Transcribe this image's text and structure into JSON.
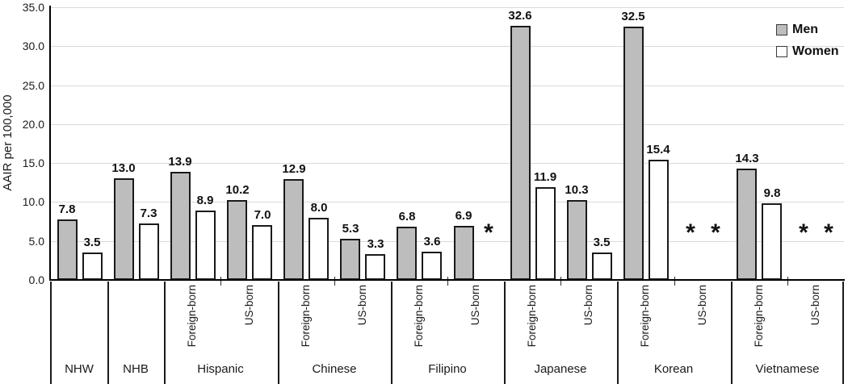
{
  "chart_data": {
    "type": "bar",
    "title": "",
    "ylabel": "AAIR per 100,000",
    "ylim": [
      0,
      35
    ],
    "ytick_step": 5,
    "yticks": [
      "0.0",
      "5.0",
      "10.0",
      "15.0",
      "20.0",
      "25.0",
      "30.0",
      "35.0"
    ],
    "grid": true,
    "legend_position": "top-right",
    "missing_marker": "*",
    "series": [
      {
        "name": "Men",
        "fill": "#bdbdbd"
      },
      {
        "name": "Women",
        "fill": "#ffffff"
      }
    ],
    "groups": [
      {
        "label": "NHW",
        "slots": [
          {
            "sub": "",
            "men": 7.8,
            "women": 3.5
          }
        ]
      },
      {
        "label": "NHB",
        "slots": [
          {
            "sub": "",
            "men": 13.0,
            "women": 7.3
          }
        ]
      },
      {
        "label": "Hispanic",
        "slots": [
          {
            "sub": "Foreign-born",
            "men": 13.9,
            "women": 8.9
          },
          {
            "sub": "US-born",
            "men": 10.2,
            "women": 7.0
          }
        ]
      },
      {
        "label": "Chinese",
        "slots": [
          {
            "sub": "Foreign-born",
            "men": 12.9,
            "women": 8.0
          },
          {
            "sub": "US-born",
            "men": 5.3,
            "women": 3.3
          }
        ]
      },
      {
        "label": "Filipino",
        "slots": [
          {
            "sub": "Foreign-born",
            "men": 6.8,
            "women": 3.6
          },
          {
            "sub": "US-born",
            "men": 6.9,
            "women": null
          }
        ]
      },
      {
        "label": "Japanese",
        "slots": [
          {
            "sub": "Foreign-born",
            "men": 32.6,
            "women": 11.9
          },
          {
            "sub": "US-born",
            "men": 10.3,
            "women": 3.5
          }
        ]
      },
      {
        "label": "Korean",
        "slots": [
          {
            "sub": "Foreign-born",
            "men": 32.5,
            "women": 15.4
          },
          {
            "sub": "US-born",
            "men": null,
            "women": null
          }
        ]
      },
      {
        "label": "Vietnamese",
        "slots": [
          {
            "sub": "Foreign-born",
            "men": 14.3,
            "women": 9.8
          },
          {
            "sub": "US-born",
            "men": null,
            "women": null
          }
        ]
      }
    ]
  },
  "colors": {
    "bar_outline": "#1a1a1a",
    "gridline": "#d9d9d9",
    "axis": "#000000",
    "text": "#1a1a1a"
  }
}
